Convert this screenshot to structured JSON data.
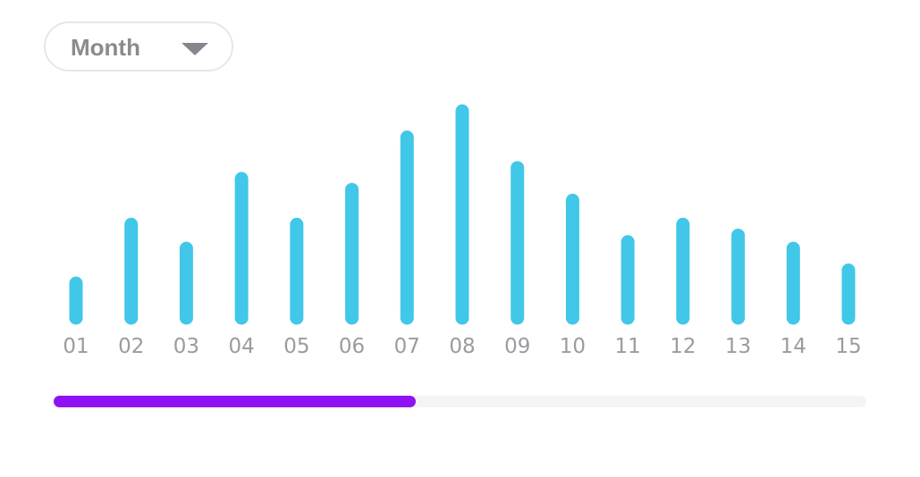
{
  "period_selector": {
    "label": "Month",
    "icon": "chevron-down-icon"
  },
  "chart_data": {
    "type": "bar",
    "categories": [
      "01",
      "02",
      "03",
      "04",
      "05",
      "06",
      "07",
      "08",
      "09",
      "10",
      "11",
      "12",
      "13",
      "14",
      "15"
    ],
    "values": [
      19,
      46,
      35,
      67,
      46,
      62,
      86,
      98,
      72,
      57,
      38,
      46,
      41,
      35,
      25
    ],
    "ylim": [
      0,
      100
    ],
    "title": "",
    "xlabel": "",
    "ylabel": "",
    "grid": false,
    "legend": "none"
  },
  "scrollbar": {
    "position_fraction": 0.0,
    "visible_fraction": 0.445
  },
  "colors": {
    "bar": "#41c7e8",
    "scrollbar_thumb": "#8f12f5",
    "scrollbar_track": "#f4f4f6",
    "tick_label": "#9b9ba0",
    "selector_text": "#8a8a8f"
  }
}
